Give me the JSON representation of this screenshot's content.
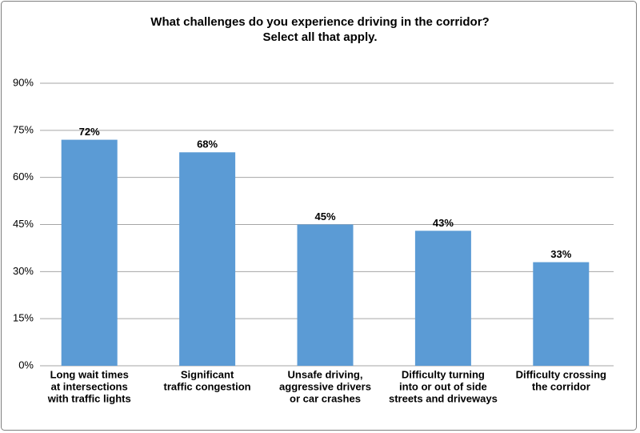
{
  "chart_data": {
    "type": "bar",
    "title": [
      "What challenges do you experience driving in the corridor?",
      "Select all that apply."
    ],
    "categories": [
      [
        "Long wait times",
        "at intersections",
        "with traffic lights"
      ],
      [
        "Significant",
        "traffic congestion"
      ],
      [
        "Unsafe driving,",
        "aggressive drivers",
        "or car crashes"
      ],
      [
        "Difficulty turning",
        "into or out of side",
        "streets and driveways"
      ],
      [
        "Difficulty crossing",
        "the corridor"
      ]
    ],
    "values": [
      72,
      68,
      45,
      43,
      33
    ],
    "value_labels": [
      "72%",
      "68%",
      "45%",
      "43%",
      "33%"
    ],
    "color": "#5b9bd5",
    "ylim": [
      0,
      90
    ],
    "yticks": [
      {
        "value": 0,
        "label": "0%"
      },
      {
        "value": 15,
        "label": "15%"
      },
      {
        "value": 30,
        "label": "30%"
      },
      {
        "value": 45,
        "label": "45%"
      },
      {
        "value": 60,
        "label": "60%"
      },
      {
        "value": 75,
        "label": "75%"
      },
      {
        "value": 90,
        "label": "90%"
      }
    ],
    "grid": true
  }
}
